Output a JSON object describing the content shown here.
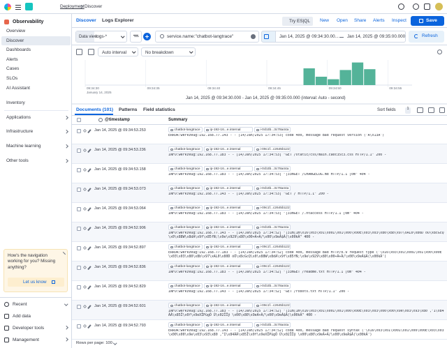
{
  "topbar": {
    "breadcrumbs": [
      "Deployment",
      "Discover"
    ]
  },
  "sidebar": {
    "title": "Observability",
    "items": [
      "Overview",
      "Discover",
      "Dashboards",
      "Alerts",
      "Cases",
      "SLOs",
      "AI Assistant"
    ],
    "groups": [
      "Inventory",
      "Applications",
      "Infrastructure",
      "Machine learning",
      "Other tools"
    ],
    "callout": {
      "text": "How's the navigation working for you? Missing anything?",
      "button": "Let us know"
    },
    "footer": [
      "Recent",
      "Add data",
      "Developer tools",
      "Management"
    ]
  },
  "toolbar": {
    "tabs": [
      "Discover",
      "Logs Explorer"
    ],
    "actions": [
      "Try ES|QL",
      "New",
      "Open",
      "Share",
      "Alerts",
      "Inspect"
    ],
    "save": "Save"
  },
  "query": {
    "data_view_label": "Data view",
    "data_view": "logs-*",
    "query": "service.name:\"chatbot-langtrace\"",
    "start": "Jan 14, 2025 @ 09:34:30.00...",
    "end": "Jan 14, 2025 @ 09:35:00.000",
    "refresh": "Refresh"
  },
  "histogram": {
    "interval": "Auto interval",
    "breakdown": "No breakdown",
    "x": [
      48,
      49,
      50,
      51,
      52,
      53
    ],
    "values": [
      20,
      10,
      7,
      18,
      27,
      19
    ],
    "color": "#54b399",
    "xlim": [
      30,
      57
    ],
    "ylim": [
      0,
      30
    ],
    "xticks": [
      {
        "value": 30,
        "label": "09:34:30"
      },
      {
        "value": 35,
        "label": "09:34:35"
      },
      {
        "value": 40,
        "label": "09:34:40"
      },
      {
        "value": 45,
        "label": "09:34:45"
      },
      {
        "value": 50,
        "label": "09:34:50"
      },
      {
        "value": 55,
        "label": "09:34:55"
      }
    ],
    "date_label": "January 14, 2025",
    "caption": "Jan 14, 2025 @ 09:34:30.000 - Jan 14, 2025 @ 09:35:00.000 (interval: Auto - second)"
  },
  "results": {
    "tabs": [
      "Documents (101)",
      "Patterns",
      "Field statistics"
    ],
    "sort": "Sort fields",
    "sort_count": 1,
    "columns": [
      "@timestamp",
      "Summary"
    ],
    "rows": [
      {
        "timestamp": "Jan 14, 2025 @ 09:34:53.253",
        "chips": [
          "chatbot-langtrace",
          "ip-192-16...e.internal",
          "i-0cb3b...3c78a44a"
        ],
        "message": "ERROR:werkzeug:192.168.77.143 - - [14/Jan/2025 17:34:53] code 400, message Bad request version ('À\\x13À')"
      },
      {
        "timestamp": "Jan 14, 2025 @ 09:34:53.236",
        "chips": [
          "chatbot-langtrace",
          "ip-192-16...e.internal",
          "i-09c1f...c2645b122"
        ],
        "message": "INFO:werkzeug:192.168.77.183 - - [14/Jan/2025 17:34:53] \"GET /static/css/main.ca0c35c3.css HTTP/1.1\" 200 -"
      },
      {
        "timestamp": "Jan 14, 2025 @ 09:34:53.158",
        "chips": [
          "chatbot-langtrace",
          "ip-192-16...e.internal",
          "i-0cb3b...3c78a44a"
        ],
        "message": "INFO:werkzeug:192.168.77.183 - - [14/Jan/2025 17:34:53] \"[33mGET /CHANGELOG.md HTTP/1.1 [0m\" 404 -"
      },
      {
        "timestamp": "Jan 14, 2025 @ 09:34:53.073",
        "chips": [
          "chatbot-langtrace",
          "ip-192-16...e.internal",
          "i-0cb3b...3c78a44a"
        ],
        "message": "INFO:werkzeug:192.168.77.143 - - [14/Jan/2025 17:34:53] \"GET / HTTP/1.1\" 200 -"
      },
      {
        "timestamp": "Jan 14, 2025 @ 09:34:53.064",
        "chips": [
          "chatbot-langtrace",
          "ip-192-16...e.internal",
          "i-09c1f...c2645b122"
        ],
        "message": "INFO:werkzeug:192.168.77.183 - - [14/Jan/2025 17:34:53] \"[33mGET /.htaccess HTTP/1.1 [0m\" 404 -"
      },
      {
        "timestamp": "Jan 14, 2025 @ 09:34:52.906",
        "chips": [
          "chatbot-langtrace",
          "ip-192-16...e.internal",
          "i-0cb3b...3c78a44a"
        ],
        "message": "INFO:werkzeug:192.168.77.143 - - [14/Jan/2025 17:34:52] \"[31m[1m\\x16\\x03\\x01\\x00Ì\\x01\\x00\\x00È\\x03\\x03\\x80\\x8b\\x97\\xAL0\\x80D óÕ\\x8cGcQ\\x0\\x88W\\x8dA\\x9f\\x85fN;\\x9e\\x929\\x80\\x00+À+À/\\x00\\x9eÀ$À(\\x00kÀ\" 400 -"
      },
      {
        "timestamp": "Jan 14, 2025 @ 09:34:52.897",
        "chips": [
          "chatbot-langtrace",
          "ip-192-16...e.internal",
          "i-09c1f...c2645b122"
        ],
        "message": "ERROR:werkzeug:192.168.77.183 - - [14/Jan/2025 17:34:52] code 400, message Bad HTTP/0.9 request type ('\\x16\\x03\\x01\\x00Ì\\x01\\x00\\x00È\\x03\\x03\\x80\\x8b\\x97\\xAL0\\x80D óÕ\\x8cGcQ\\x0\\x88W\\x8dA\\x9f\\x85fN;\\x9e\\x929\\x80\\x00+À+À/\\x00\\x9eÀ$À(\\x00kÀ')"
      },
      {
        "timestamp": "Jan 14, 2025 @ 09:34:52.836",
        "chips": [
          "chatbot-langtrace",
          "ip-192-16...e.internal",
          "i-09c1f...c2645b122"
        ],
        "message": "INFO:werkzeug:192.168.77.183 - - [14/Jan/2025 17:34:52] \"[33mGET /readme.txt HTTP/1.1 [0m\" 404 -"
      },
      {
        "timestamp": "Jan 14, 2025 @ 09:34:52.829",
        "chips": [
          "chatbot-langtrace",
          "ip-192-16...e.internal",
          "i-0cb3b...3c78a44a"
        ],
        "message": "INFO:werkzeug:192.168.77.143 - - [14/Jan/2025 17:34:52] \"GET /robots.txt HTTP/1.1\" 200 -"
      },
      {
        "timestamp": "Jan 14, 2025 @ 09:34:52.601",
        "chips": [
          "chatbot-langtrace",
          "ip-192-16...e.internal",
          "i-09c1f...c2645b122"
        ],
        "message": "INFO:werkzeug:192.168.77.183 - - [14/Jan/2025 17:34:52] \"[31m[1m\\x16\\x03\\x01\\x00Ì\\x01\\x00\\x00È\\x03\\x03\\x00\\x00\\x9e\\x03\\x93\\x80 ,\"I\\x84ÃÁ\\x85Î\\x0f\\x9eXÎPùgÕ Ù\\x02ÏÎÿ \\x00\\x80\\x9eÁ+À/\\x00\\x9eÀ$À(\\x00kÀ\" 400 -"
      },
      {
        "timestamp": "Jan 14, 2025 @ 09:34:52.793",
        "chips": [
          "chatbot-langtrace",
          "ip-192-16...e.internal",
          "i-0cb3b...3c78a44a"
        ],
        "message": "ERROR:werkzeug:192.168.77.143 - - [14/Jan/2025 17:34:52] code 400, message Bad request syntax ('\\x16\\x03\\x01\\x00Ì\\x01\\x00\\x00È\\x03\\x03\\x00\\x00\\x9e\\x03\\x93\\x80 ,\"I\\x84ÃÁ\\x85Î\\x0f\\x9eXÎPùgÕ Ù\\x02ÏÎÿ \\x00\\x80\\x9eÁ+À/\\x00\\x9eÀ$À(\\x00kÀ')"
      }
    ],
    "footer": "Rows per page: 100"
  }
}
